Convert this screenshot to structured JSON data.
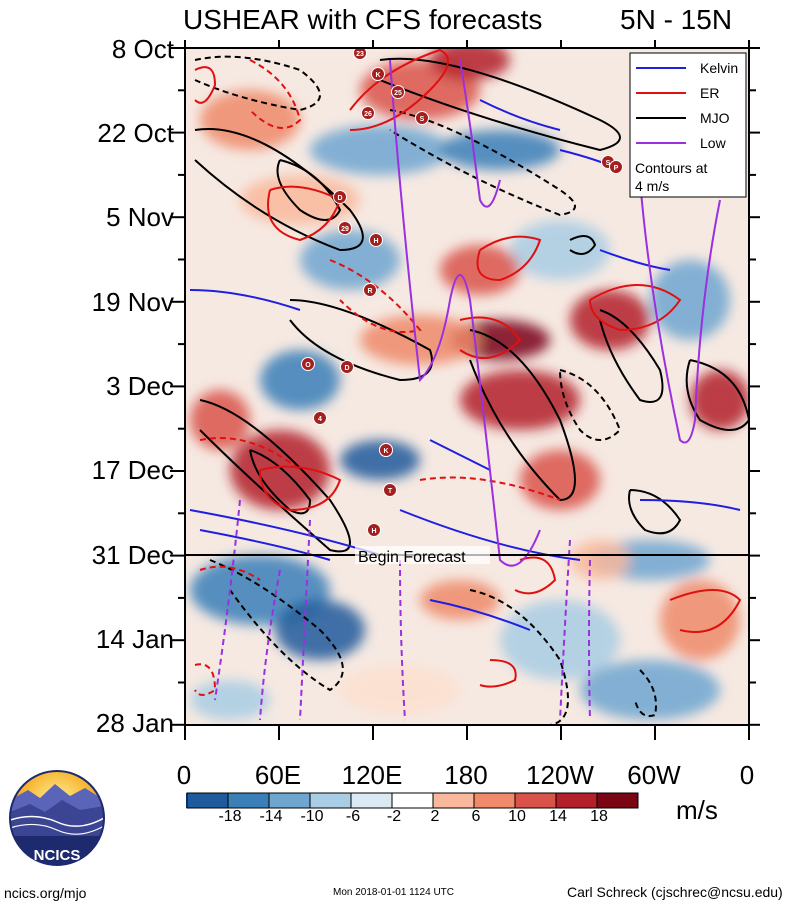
{
  "chart_data": {
    "type": "heatmap",
    "title": "USHEAR with CFS forecasts",
    "subtitle": "5N - 15N",
    "x_tick_labels": [
      "0",
      "60E",
      "120E",
      "180",
      "120W",
      "60W",
      "0"
    ],
    "y_tick_labels": [
      "8 Oct",
      "22 Oct",
      "5 Nov",
      "19 Nov",
      "3 Dec",
      "17 Dec",
      "31 Dec",
      "14 Jan",
      "28 Jan"
    ],
    "xlim_deg_east": [
      0,
      360
    ],
    "y_range": [
      "8 Oct",
      "28 Jan"
    ],
    "forecast_start": "31 Dec",
    "forecast_label": "Begin Forecast",
    "legend": {
      "entries": [
        {
          "name": "Kelvin",
          "color": "#1f1fe0"
        },
        {
          "name": "ER",
          "color": "#e01010"
        },
        {
          "name": "MJO",
          "color": "#000000"
        },
        {
          "name": "Low",
          "color": "#9a30e0"
        }
      ],
      "note": "Contours at 4 m/s",
      "placement": "top-right"
    },
    "colorbar": {
      "units": "m/s",
      "labels": [
        "-18",
        "-14",
        "-10",
        "-6",
        "-2",
        "2",
        "6",
        "10",
        "14",
        "18"
      ],
      "colors": [
        "#08306b",
        "#1f5a9c",
        "#3a7fb8",
        "#6ea6d0",
        "#a9cde4",
        "#dbe9f3",
        "#ffffff",
        "#fde0cf",
        "#f9b89c",
        "#ef8a6a",
        "#d9534a",
        "#b3202a",
        "#7a0614"
      ]
    },
    "storm_markers": [
      "23",
      "K",
      "25",
      "26",
      "S",
      "S",
      "P",
      "D",
      "29",
      "H",
      "R",
      "K",
      "O",
      "D",
      "4",
      "K",
      "T",
      "H"
    ]
  },
  "footer": {
    "left": "ncics.org/mjo",
    "middle": "Mon 2018-01-01 1124 UTC",
    "right": "Carl Schreck (cjschrec@ncsu.edu)"
  },
  "logo_text": "NCICS"
}
